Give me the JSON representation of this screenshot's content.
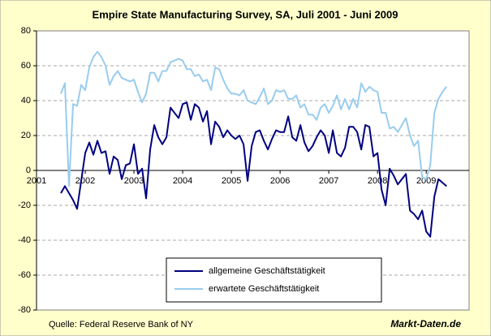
{
  "chart_data": {
    "type": "line",
    "title": "Empire State Manufacturing Survey, SA, Juli 2001 - Juni 2009",
    "source": "Quelle: Federal Reserve Bank of NY",
    "brand": "Markt-Daten.de",
    "xlim": [
      2001,
      2009.88
    ],
    "xticks": [
      2001,
      2002,
      2003,
      2004,
      2005,
      2006,
      2007,
      2008,
      2009
    ],
    "ylim": [
      -80,
      80
    ],
    "yticks": [
      -80,
      -60,
      -40,
      -20,
      0,
      20,
      40,
      60,
      80
    ],
    "grid": true,
    "legend": "lower center",
    "x": [
      2001.5,
      2001.583,
      2001.667,
      2001.75,
      2001.833,
      2001.917,
      2002,
      2002.083,
      2002.167,
      2002.25,
      2002.333,
      2002.417,
      2002.5,
      2002.583,
      2002.667,
      2002.75,
      2002.833,
      2002.917,
      2003,
      2003.083,
      2003.167,
      2003.25,
      2003.333,
      2003.417,
      2003.5,
      2003.583,
      2003.667,
      2003.75,
      2003.833,
      2003.917,
      2004,
      2004.083,
      2004.167,
      2004.25,
      2004.333,
      2004.417,
      2004.5,
      2004.583,
      2004.667,
      2004.75,
      2004.833,
      2004.917,
      2005,
      2005.083,
      2005.167,
      2005.25,
      2005.333,
      2005.417,
      2005.5,
      2005.583,
      2005.667,
      2005.75,
      2005.833,
      2005.917,
      2006,
      2006.083,
      2006.167,
      2006.25,
      2006.333,
      2006.417,
      2006.5,
      2006.583,
      2006.667,
      2006.75,
      2006.833,
      2006.917,
      2007,
      2007.083,
      2007.167,
      2007.25,
      2007.333,
      2007.417,
      2007.5,
      2007.583,
      2007.667,
      2007.75,
      2007.833,
      2007.917,
      2008,
      2008.083,
      2008.167,
      2008.25,
      2008.333,
      2008.417,
      2008.5,
      2008.583,
      2008.667,
      2008.75,
      2008.833,
      2008.917,
      2009,
      2009.083,
      2009.167,
      2009.25,
      2009.333,
      2009.417
    ],
    "series": [
      {
        "name": "allgemeine Geschäftstätigkeit",
        "color": "#000080",
        "values": [
          -13,
          -9,
          -13,
          -17,
          -22,
          -6,
          10,
          16,
          9,
          17,
          10,
          11,
          -2,
          8,
          6,
          -5,
          3,
          4,
          15,
          -2,
          1,
          -16,
          12,
          26,
          19,
          15,
          19,
          36,
          33,
          30,
          38,
          39,
          29,
          38,
          36,
          28,
          34,
          15,
          28,
          25,
          19,
          23,
          20,
          18,
          20,
          15,
          -6,
          14,
          22,
          23,
          17,
          12,
          18,
          23,
          22,
          22,
          31,
          19,
          17,
          26,
          16,
          11,
          14,
          19,
          23,
          20,
          10,
          23,
          10,
          8,
          13,
          25,
          25,
          22,
          12,
          26,
          25,
          8,
          10,
          -11,
          -20,
          1,
          -3,
          -8,
          -5,
          -2,
          -23,
          -25,
          -28,
          -23,
          -35,
          -38,
          -15,
          -5,
          -7,
          -9
        ]
      },
      {
        "name": "erwartete Geschäftstätigkeit",
        "color": "#99ccee",
        "values": [
          44,
          50,
          -9,
          38,
          37,
          49,
          46,
          59,
          65,
          68,
          65,
          60,
          49,
          54,
          57,
          53,
          52,
          51,
          52,
          45,
          39,
          44,
          56,
          56,
          51,
          57,
          57,
          62,
          63,
          64,
          63,
          58,
          58,
          54,
          55,
          51,
          52,
          46,
          59,
          58,
          52,
          47,
          44,
          44,
          43,
          46,
          40,
          39,
          38,
          42,
          47,
          38,
          40,
          46,
          45,
          46,
          41,
          41,
          43,
          36,
          38,
          32,
          32,
          29,
          36,
          38,
          33,
          37,
          43,
          35,
          41,
          35,
          41,
          36,
          50,
          45,
          48,
          46,
          45,
          33,
          33,
          24,
          25,
          22,
          26,
          30,
          20,
          14,
          17,
          -4,
          -5,
          3,
          33,
          41,
          45,
          48
        ]
      }
    ]
  }
}
